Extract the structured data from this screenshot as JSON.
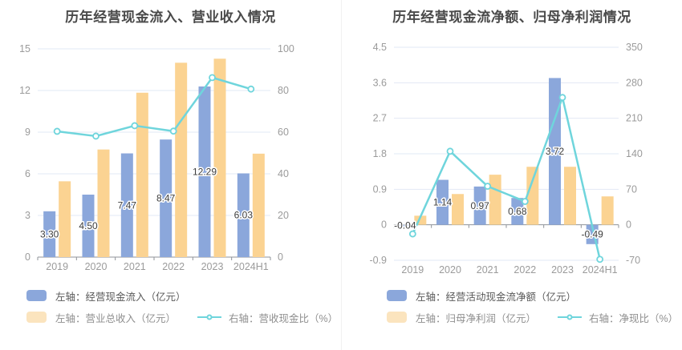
{
  "style": {
    "background": "#FFFFFF",
    "bar_blue": "#8BA7DB",
    "bar_orange": "#FBD392",
    "line_teal": "#6FD5DC",
    "grid_color": "#E2E8F4",
    "axis_color": "#8F9399",
    "tick_text": "#9B9B9B",
    "value_text": "#3C3C3C",
    "title_text": "#4A4A4A"
  },
  "chart_data": [
    {
      "type": "bar",
      "combo": "dual-axis bar + line",
      "title": "历年经营现金流入、营业收入情况",
      "categories": [
        "2019",
        "2020",
        "2021",
        "2022",
        "2023",
        "2024H1"
      ],
      "legend_position": "bottom-left",
      "grid": true,
      "left_axis": {
        "min": 0,
        "max": 15,
        "ticks": [
          "0",
          "3",
          "6",
          "9",
          "12",
          "15"
        ]
      },
      "right_axis": {
        "min": 0,
        "max": 100,
        "ticks": [
          "0",
          "20",
          "40",
          "60",
          "80",
          "100"
        ]
      },
      "series": [
        {
          "name": "左轴：经营现金流入（亿元）",
          "type": "bar",
          "axis": "left",
          "color": "#8BA7DB",
          "legend_color": "#8BA7DB",
          "values": [
            3.3,
            4.5,
            7.47,
            8.47,
            12.29,
            6.03
          ],
          "value_labels": [
            "3.30",
            "4.50",
            "7.47",
            "8.47",
            "12.29",
            "6.03"
          ]
        },
        {
          "name": "左轴：营业总收入（亿元）",
          "type": "bar",
          "axis": "left",
          "color": "#FBD392",
          "legend_color": "#FBE4BE",
          "values": [
            5.46,
            7.75,
            11.84,
            14.0,
            14.29,
            7.45
          ]
        },
        {
          "name": "右轴：营收现金比（%）",
          "type": "line",
          "axis": "right",
          "color": "#6FD5DC",
          "values": [
            60.4,
            58.1,
            63.1,
            60.5,
            86.2,
            80.7
          ]
        }
      ]
    },
    {
      "type": "bar",
      "combo": "dual-axis bar + line",
      "title": "历年经营现金流净额、归母净利润情况",
      "categories": [
        "2019",
        "2020",
        "2021",
        "2022",
        "2023",
        "2024H1"
      ],
      "legend_position": "bottom-left",
      "grid": true,
      "left_axis": {
        "min": -0.9,
        "max": 4.5,
        "ticks": [
          "-0.9",
          "0",
          "0.9",
          "1.8",
          "2.7",
          "3.6",
          "4.5"
        ]
      },
      "right_axis": {
        "min": -70,
        "max": 350,
        "ticks": [
          "-70",
          "0",
          "70",
          "140",
          "210",
          "280",
          "350"
        ]
      },
      "series": [
        {
          "name": "左轴：经营活动现金流净额（亿元）",
          "type": "bar",
          "axis": "left",
          "color": "#8BA7DB",
          "legend_color": "#8BA7DB",
          "values": [
            -0.04,
            1.14,
            0.97,
            0.68,
            3.72,
            -0.49
          ],
          "value_labels": [
            "-0.04",
            "1.14",
            "0.97",
            "0.68",
            "3.72",
            "-0.49"
          ]
        },
        {
          "name": "左轴：归母净利润（亿元）",
          "type": "bar",
          "axis": "left",
          "color": "#FBD392",
          "legend_color": "#FBE4BE",
          "values": [
            0.23,
            0.78,
            1.27,
            1.47,
            1.47,
            0.72
          ]
        },
        {
          "name": "右轴：净现比（%）",
          "type": "line",
          "axis": "right",
          "color": "#6FD5DC",
          "values": [
            -18,
            145,
            76,
            46,
            251,
            -68
          ]
        }
      ]
    }
  ]
}
